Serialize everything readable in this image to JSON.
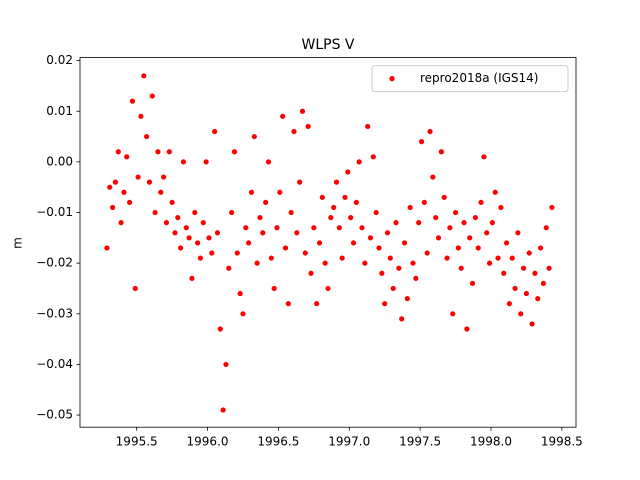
{
  "chart_data": {
    "type": "scatter",
    "title": "WLPS V",
    "ylabel": "m",
    "series": [
      {
        "name": "repro2018a (IGS14)",
        "color": "#ff0000",
        "x": [
          1995.29,
          1995.31,
          1995.33,
          1995.35,
          1995.37,
          1995.39,
          1995.41,
          1995.43,
          1995.45,
          1995.47,
          1995.49,
          1995.51,
          1995.53,
          1995.55,
          1995.57,
          1995.59,
          1995.61,
          1995.63,
          1995.65,
          1995.67,
          1995.69,
          1995.71,
          1995.73,
          1995.75,
          1995.77,
          1995.79,
          1995.81,
          1995.83,
          1995.85,
          1995.87,
          1995.89,
          1995.91,
          1995.93,
          1995.95,
          1995.97,
          1995.99,
          1996.01,
          1996.03,
          1996.05,
          1996.07,
          1996.09,
          1996.11,
          1996.13,
          1996.15,
          1996.17,
          1996.19,
          1996.21,
          1996.23,
          1996.25,
          1996.27,
          1996.29,
          1996.31,
          1996.33,
          1996.35,
          1996.37,
          1996.39,
          1996.41,
          1996.43,
          1996.45,
          1996.47,
          1996.49,
          1996.51,
          1996.53,
          1996.55,
          1996.57,
          1996.59,
          1996.61,
          1996.63,
          1996.65,
          1996.67,
          1996.69,
          1996.71,
          1996.73,
          1996.75,
          1996.77,
          1996.79,
          1996.81,
          1996.83,
          1996.85,
          1996.87,
          1996.89,
          1996.91,
          1996.93,
          1996.95,
          1996.97,
          1996.99,
          1997.01,
          1997.03,
          1997.05,
          1997.07,
          1997.09,
          1997.11,
          1997.13,
          1997.15,
          1997.17,
          1997.19,
          1997.21,
          1997.23,
          1997.25,
          1997.27,
          1997.29,
          1997.31,
          1997.33,
          1997.35,
          1997.37,
          1997.39,
          1997.41,
          1997.43,
          1997.45,
          1997.47,
          1997.49,
          1997.51,
          1997.53,
          1997.55,
          1997.57,
          1997.59,
          1997.61,
          1997.63,
          1997.65,
          1997.67,
          1997.69,
          1997.71,
          1997.73,
          1997.75,
          1997.77,
          1997.79,
          1997.81,
          1997.83,
          1997.85,
          1997.87,
          1997.89,
          1997.91,
          1997.93,
          1997.95,
          1997.97,
          1997.99,
          1998.01,
          1998.03,
          1998.05,
          1998.07,
          1998.09,
          1998.11,
          1998.13,
          1998.15,
          1998.17,
          1998.19,
          1998.21,
          1998.23,
          1998.25,
          1998.27,
          1998.29,
          1998.31,
          1998.33,
          1998.35,
          1998.37,
          1998.39,
          1998.41,
          1998.43
        ],
        "values": [
          -0.017,
          -0.005,
          -0.009,
          -0.004,
          0.002,
          -0.012,
          -0.006,
          0.001,
          -0.008,
          0.012,
          -0.025,
          -0.003,
          0.009,
          0.017,
          0.005,
          -0.004,
          0.013,
          -0.01,
          0.002,
          -0.006,
          -0.003,
          -0.012,
          0.002,
          -0.008,
          -0.014,
          -0.011,
          -0.017,
          0.0,
          -0.013,
          -0.015,
          -0.023,
          -0.01,
          -0.016,
          -0.019,
          -0.012,
          0.0,
          -0.015,
          -0.018,
          0.006,
          -0.014,
          -0.033,
          -0.049,
          -0.04,
          -0.021,
          -0.01,
          0.002,
          -0.018,
          -0.026,
          -0.03,
          -0.013,
          -0.016,
          -0.006,
          0.005,
          -0.02,
          -0.011,
          -0.014,
          -0.008,
          0.0,
          -0.019,
          -0.025,
          -0.013,
          -0.006,
          0.009,
          -0.017,
          -0.028,
          -0.01,
          0.006,
          -0.014,
          -0.004,
          0.01,
          -0.018,
          0.007,
          -0.022,
          -0.013,
          -0.028,
          -0.016,
          -0.007,
          -0.02,
          -0.025,
          -0.011,
          -0.009,
          -0.004,
          -0.013,
          -0.019,
          -0.007,
          -0.002,
          -0.011,
          -0.016,
          -0.008,
          0.0,
          -0.013,
          -0.02,
          0.007,
          -0.015,
          0.001,
          -0.01,
          -0.017,
          -0.022,
          -0.028,
          -0.014,
          -0.019,
          -0.025,
          -0.012,
          -0.021,
          -0.031,
          -0.016,
          -0.027,
          -0.009,
          -0.02,
          -0.023,
          -0.012,
          0.004,
          -0.008,
          -0.018,
          0.006,
          -0.003,
          -0.011,
          -0.015,
          0.002,
          -0.007,
          -0.019,
          -0.013,
          -0.03,
          -0.01,
          -0.017,
          -0.021,
          -0.012,
          -0.033,
          -0.015,
          -0.024,
          -0.011,
          -0.017,
          -0.008,
          0.001,
          -0.014,
          -0.02,
          -0.012,
          -0.006,
          -0.019,
          -0.009,
          -0.022,
          -0.016,
          -0.028,
          -0.019,
          -0.025,
          -0.014,
          -0.03,
          -0.021,
          -0.026,
          -0.018,
          -0.032,
          -0.022,
          -0.027,
          -0.017,
          -0.024,
          -0.013,
          -0.021,
          -0.009
        ]
      }
    ],
    "xlim": [
      1995.1,
      1998.6
    ],
    "xticks": [
      1995.5,
      {
        "value": 1996.0,
        "label": "1996.0"
      },
      1996.5,
      {
        "value": 1997.0,
        "label": "1997.0"
      },
      1997.5,
      {
        "value": 1998.0,
        "label": "1998.0"
      },
      1998.5
    ],
    "ylim": [
      -0.0524,
      0.0206
    ],
    "yticks": [
      {
        "value": -0.05,
        "label": "−0.05"
      },
      {
        "value": -0.04,
        "label": "−0.04"
      },
      {
        "value": -0.03,
        "label": "−0.03"
      },
      {
        "value": -0.02,
        "label": "−0.02"
      },
      {
        "value": -0.01,
        "label": "−0.01"
      },
      {
        "value": 0,
        "label": "0.00"
      },
      0.01,
      0.02
    ],
    "grid": false,
    "legend": "upper right"
  }
}
